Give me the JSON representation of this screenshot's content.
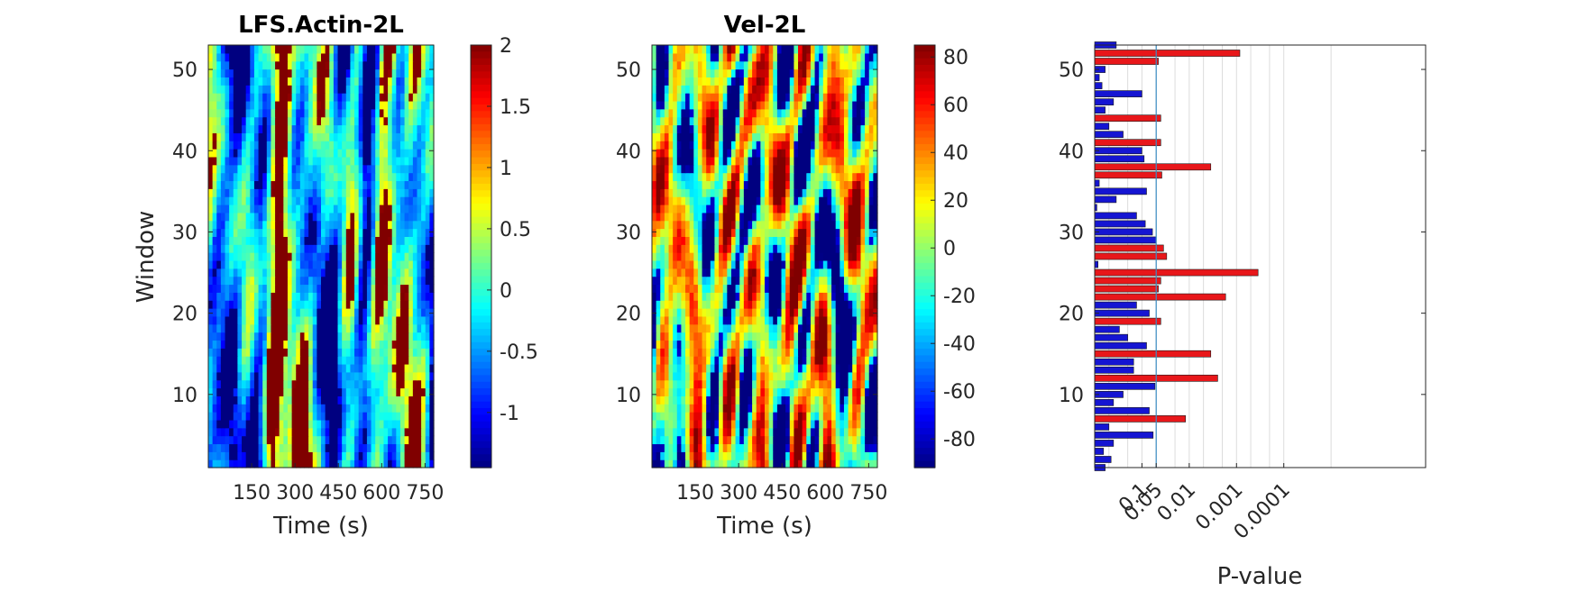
{
  "chart_data": [
    {
      "type": "heatmap",
      "title": "LFS.Actin-2L",
      "xlabel": "Time (s)",
      "ylabel": "Window",
      "x_ticks": [
        "150",
        "300",
        "450",
        "600",
        "750"
      ],
      "y_ticks": [
        "10",
        "20",
        "30",
        "40",
        "50"
      ],
      "ylim": [
        1,
        53
      ],
      "xlim": [
        0,
        780
      ],
      "windows": 53,
      "time_bins": 54,
      "colormap": "jet",
      "clim": [
        -1.45,
        2.0
      ],
      "colorbar_ticks": [
        "-1",
        "-0.5",
        "0",
        "0.5",
        "1",
        "1.5",
        "2"
      ],
      "colorbar_values": [
        -1,
        -0.5,
        0,
        0.5,
        1,
        1.5,
        2
      ]
    },
    {
      "type": "heatmap",
      "title": "Vel-2L",
      "xlabel": "Time (s)",
      "ylabel": "",
      "x_ticks": [
        "150",
        "300",
        "450",
        "600",
        "750"
      ],
      "y_ticks": [
        "10",
        "20",
        "30",
        "40",
        "50"
      ],
      "ylim": [
        1,
        53
      ],
      "xlim": [
        0,
        780
      ],
      "windows": 53,
      "time_bins": 54,
      "colormap": "jet",
      "clim": [
        -92,
        85
      ],
      "colorbar_ticks": [
        "-80",
        "-60",
        "-40",
        "-20",
        "0",
        "20",
        "40",
        "60",
        "80"
      ],
      "colorbar_values": [
        -80,
        -60,
        -40,
        -20,
        0,
        20,
        40,
        60,
        80
      ]
    },
    {
      "type": "bar",
      "orientation": "horizontal",
      "title": "",
      "xlabel": "P-value",
      "ylabel": "",
      "x_scale": "log-reversed",
      "xlim": [
        1,
        1e-07
      ],
      "x_ticks": [
        {
          "label": "0.1",
          "value": 0.1
        },
        {
          "label": "0.05",
          "value": 0.05
        },
        {
          "label": "0.01",
          "value": 0.01
        },
        {
          "label": "0.001",
          "value": 0.001
        },
        {
          "label": "0.0001",
          "value": 0.0001
        }
      ],
      "y_ticks": [
        "10",
        "20",
        "30",
        "40",
        "50"
      ],
      "ylim": [
        1,
        53
      ],
      "threshold_line": 0.05,
      "grid": true,
      "colors": {
        "significant": "#e8171a",
        "not_significant": "#1515d2",
        "threshold": "#3b8dc4"
      },
      "windows": [
        1,
        2,
        3,
        4,
        5,
        6,
        7,
        8,
        9,
        10,
        11,
        12,
        13,
        14,
        15,
        16,
        17,
        18,
        19,
        20,
        21,
        22,
        23,
        24,
        25,
        26,
        27,
        28,
        29,
        30,
        31,
        32,
        33,
        34,
        35,
        36,
        37,
        38,
        39,
        40,
        41,
        42,
        43,
        44,
        45,
        46,
        47,
        48,
        49,
        50,
        51,
        52,
        53
      ],
      "p_values": [
        0.6,
        0.45,
        0.65,
        0.4,
        0.058,
        0.5,
        0.012,
        0.07,
        0.4,
        0.25,
        0.053,
        0.0025,
        0.15,
        0.15,
        0.0035,
        0.08,
        0.2,
        0.3,
        0.04,
        0.07,
        0.13,
        0.0017,
        0.045,
        0.04,
        0.00035,
        0.85,
        0.03,
        0.035,
        0.05,
        0.06,
        0.085,
        0.13,
        0.9,
        0.35,
        0.08,
        0.8,
        0.038,
        0.0035,
        0.09,
        0.1,
        0.04,
        0.25,
        0.5,
        0.04,
        0.6,
        0.4,
        0.1,
        0.7,
        0.8,
        0.6,
        0.045,
        0.00085,
        0.35
      ],
      "significant": [
        false,
        false,
        false,
        false,
        false,
        false,
        true,
        false,
        false,
        false,
        false,
        true,
        false,
        false,
        true,
        false,
        false,
        false,
        true,
        false,
        false,
        true,
        true,
        true,
        true,
        false,
        true,
        true,
        false,
        false,
        false,
        false,
        false,
        false,
        false,
        false,
        true,
        true,
        false,
        false,
        true,
        false,
        false,
        true,
        false,
        false,
        false,
        false,
        false,
        false,
        true,
        true,
        false
      ]
    }
  ]
}
